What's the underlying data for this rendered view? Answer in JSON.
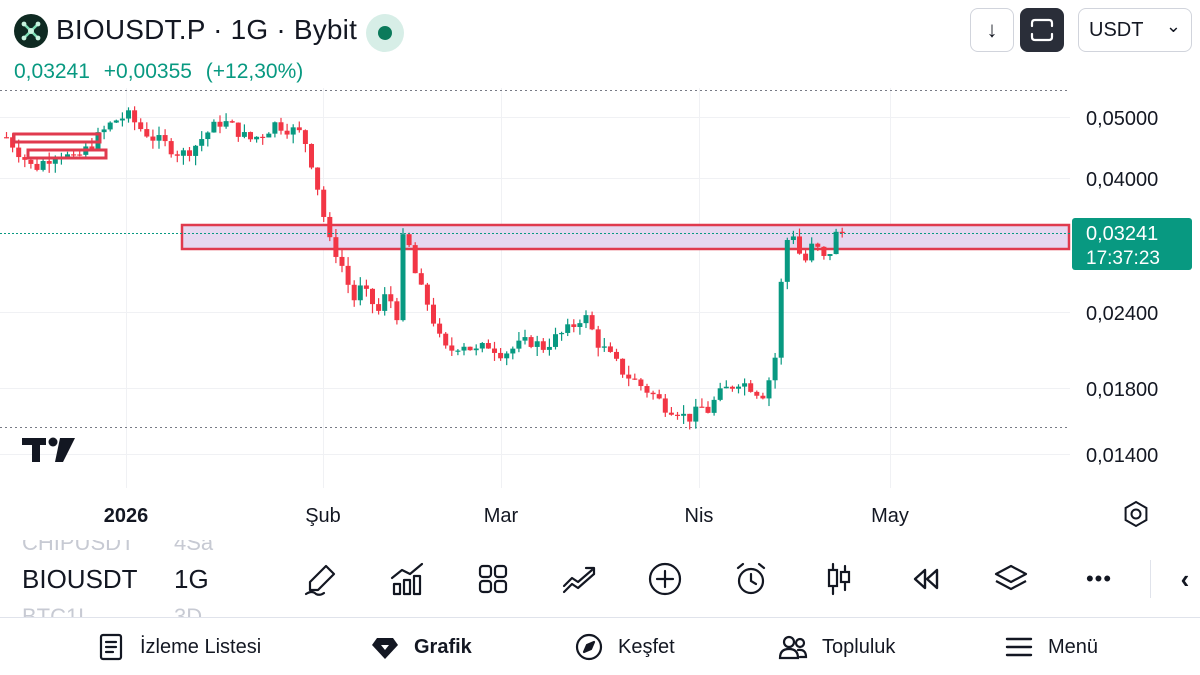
{
  "header": {
    "title": "BIOUSDT.P · 1G · Bybit",
    "price": "0,03241",
    "change": "+0,00355",
    "change_pct": "(+12,30%)",
    "currency": "USDT",
    "currency_chevron": "⌄",
    "download_arrow": "↓"
  },
  "colors": {
    "up": "#089981",
    "down": "#f23645",
    "zone_fill": "#e6d8f0",
    "zone_border": "#e03a4e"
  },
  "chart": {
    "price_axis": [
      "0,05000",
      "0,04000",
      "0,02400",
      "0,01800",
      "0,01400"
    ],
    "current_price": "0,03241",
    "countdown": "17:37:23",
    "time_axis": [
      "2026",
      "Şub",
      "Mar",
      "Nis",
      "May"
    ],
    "watermark": "TV"
  },
  "chart_data": {
    "type": "candlestick",
    "symbol": "BIOUSDT.P",
    "interval": "1G",
    "scale": "log",
    "ylim": [
      0.0135,
      0.0555
    ],
    "y_ticks": [
      0.05,
      0.04,
      0.024,
      0.018,
      0.014
    ],
    "x_ticks": [
      "2026",
      "Şub",
      "Mar",
      "Nis",
      "May"
    ],
    "last_price": 0.03241,
    "resistance_zone": [
      0.0305,
      0.0345
    ],
    "price_path": [
      [
        0.0465,
        0.0438,
        0.0412,
        0.0428,
        0.044,
        0.0425,
        0.0445,
        0.047,
        0.0495,
        0.0505,
        0.048,
        0.0462,
        0.045,
        0.0435,
        0.045,
        0.0475,
        0.0495,
        0.048,
        0.046,
        0.047,
        0.049,
        0.048
      ],
      [
        0.047,
        0.044,
        0.04,
        0.036,
        0.0315,
        0.0305,
        0.029,
        0.027,
        0.025,
        0.0262,
        0.0256,
        0.0248,
        0.024,
        0.0254,
        0.025,
        0.0236,
        0.033,
        0.03,
        0.027,
        0.0256,
        0.0244,
        0.0226,
        0.021
      ],
      [
        0.0206,
        0.0214,
        0.0206,
        0.0212,
        0.0205,
        0.021,
        0.0215,
        0.021,
        0.0218,
        0.0225,
        0.0238,
        0.0214,
        0.0202,
        0.019,
        0.0183,
        0.0176,
        0.0168
      ],
      [
        0.0165,
        0.016,
        0.0162,
        0.0167,
        0.0165,
        0.0173,
        0.0178,
        0.0181,
        0.0185,
        0.0182,
        0.018,
        0.0174,
        0.0186,
        0.0206,
        0.0305,
        0.033,
        0.03,
        0.029,
        0.0315,
        0.029,
        0.03,
        0.0324
      ]
    ],
    "segment_lengths": [
      22,
      23,
      17,
      22
    ]
  },
  "toolbar": {
    "symbol": "BIOUSDT",
    "interval": "1G",
    "ghost_above_symbol": "CHIPUSDT",
    "ghost_above_interval": "4Sa",
    "ghost_below_symbol": "BTC1L",
    "ghost_below_interval": "3D",
    "tools": [
      "brush-icon",
      "indicators-icon",
      "layout-icon",
      "strategy-icon",
      "add-icon",
      "alert-icon",
      "candles-icon",
      "replay-icon",
      "layers-icon",
      "more-icon",
      "collapse-icon"
    ],
    "more_glyph": "•••",
    "collapse_glyph": "‹"
  },
  "nav": {
    "watchlist": "İzleme Listesi",
    "chart": "Grafik",
    "explore": "Keşfet",
    "community": "Topluluk",
    "menu": "Menü"
  }
}
